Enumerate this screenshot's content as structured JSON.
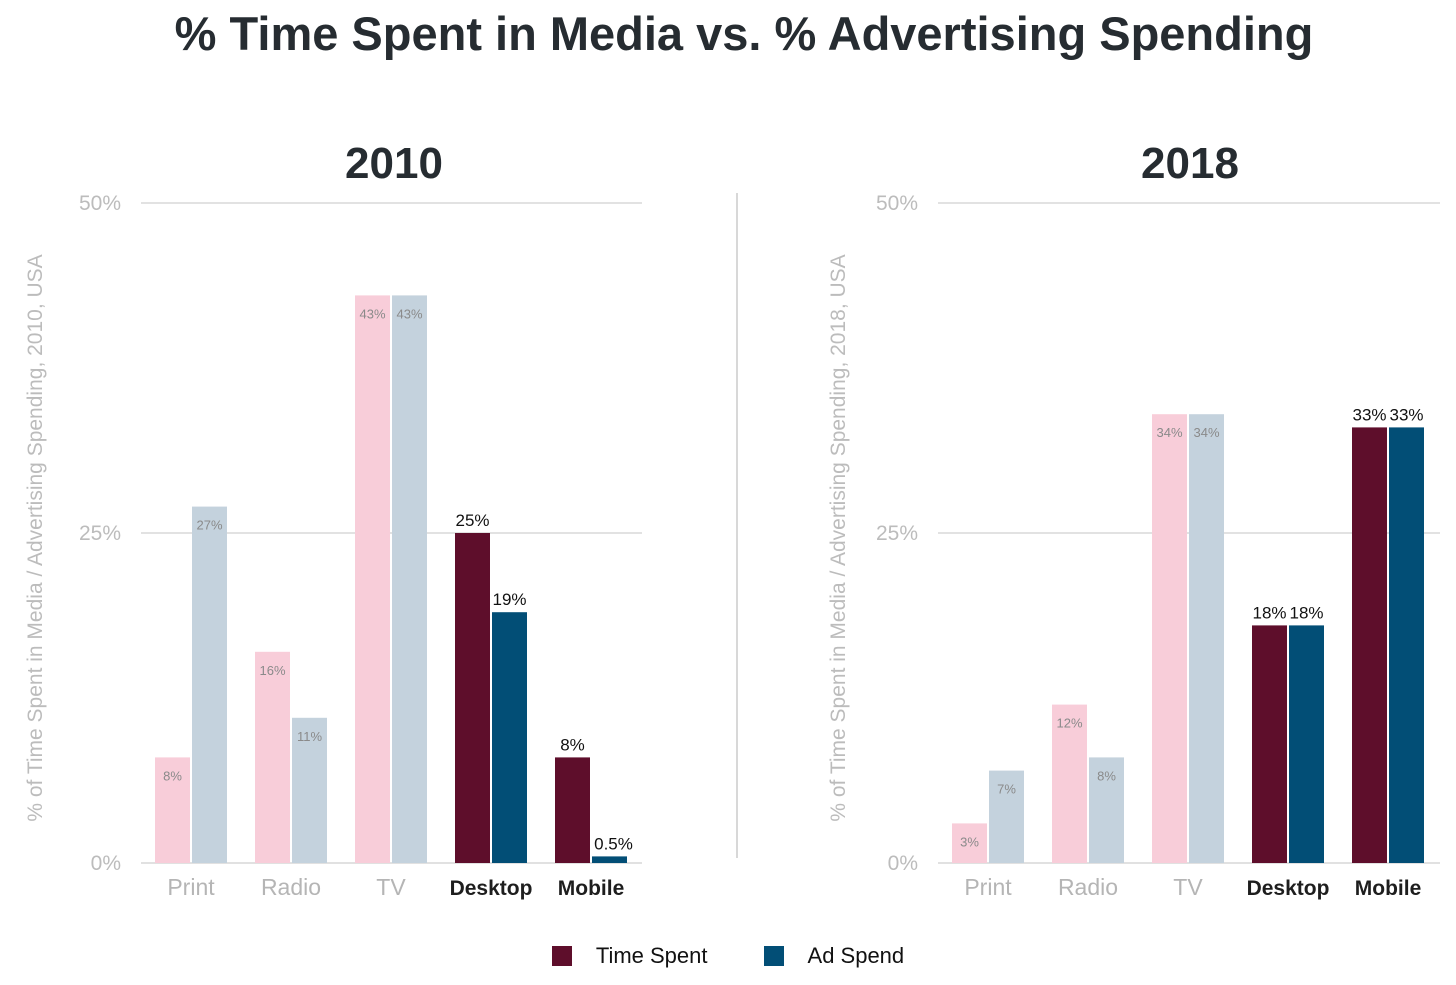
{
  "title": "% Time Spent in Media vs. % Advertising Spending",
  "colors": {
    "time_emphasis": "#5e0e2b",
    "ad_emphasis": "#024e76",
    "time_muted": "#f8cdd9",
    "ad_muted": "#c4d2dd"
  },
  "legend": [
    {
      "label": "Time Spent",
      "color": "#5e0e2b"
    },
    {
      "label": "Ad Spend",
      "color": "#024e76"
    }
  ],
  "chart_data": [
    {
      "type": "bar",
      "title": "2010",
      "ylabel": "% of Time Spent in Media / Advertising Spending, 2010, USA",
      "ylim": [
        0,
        50
      ],
      "yticks": [
        "0%",
        "25%",
        "50%"
      ],
      "categories": [
        "Print",
        "Radio",
        "TV",
        "Desktop",
        "Mobile"
      ],
      "emphasized": [
        false,
        false,
        false,
        true,
        true
      ],
      "series": [
        {
          "name": "Time Spent",
          "values": [
            8,
            16,
            43,
            25,
            8
          ],
          "labels": [
            "8%",
            "16%",
            "43%",
            "25%",
            "8%"
          ]
        },
        {
          "name": "Ad Spend",
          "values": [
            27,
            11,
            43,
            19,
            0.5
          ],
          "labels": [
            "27%",
            "11%",
            "43%",
            "19%",
            "0.5%"
          ]
        }
      ]
    },
    {
      "type": "bar",
      "title": "2018",
      "ylabel": "% of Time Spent in Media / Advertising Spending, 2018, USA",
      "ylim": [
        0,
        50
      ],
      "yticks": [
        "0%",
        "25%",
        "50%"
      ],
      "categories": [
        "Print",
        "Radio",
        "TV",
        "Desktop",
        "Mobile"
      ],
      "emphasized": [
        false,
        false,
        false,
        true,
        true
      ],
      "series": [
        {
          "name": "Time Spent",
          "values": [
            3,
            12,
            34,
            18,
            33
          ],
          "labels": [
            "3%",
            "12%",
            "34%",
            "18%",
            "33%"
          ]
        },
        {
          "name": "Ad Spend",
          "values": [
            7,
            8,
            34,
            18,
            33
          ],
          "labels": [
            "7%",
            "8%",
            "34%",
            "18%",
            "33%"
          ]
        }
      ]
    }
  ]
}
